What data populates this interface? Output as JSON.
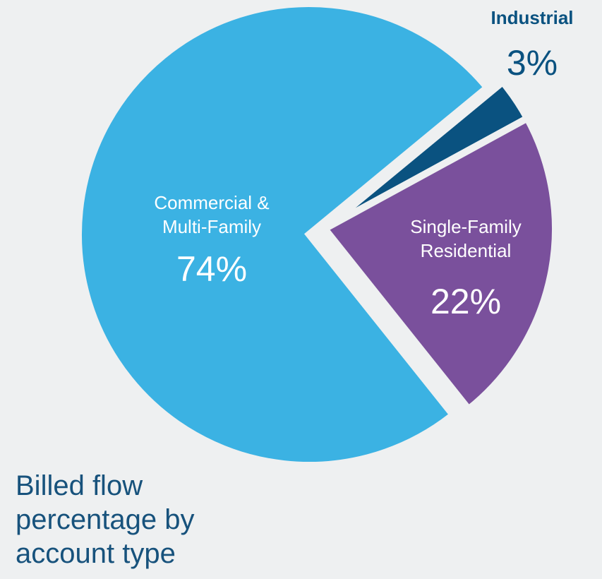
{
  "chart_data": {
    "type": "pie",
    "title": "Billed flow percentage by account type",
    "title_lines": [
      "Billed flow",
      "percentage by",
      "account type"
    ],
    "legend": "none",
    "slices": [
      {
        "name": "Commercial & Multi-Family",
        "label_lines": [
          "Commercial &",
          "Multi-Family"
        ],
        "value": 74,
        "value_label": "74%",
        "color": "#3bb2e3"
      },
      {
        "name": "Industrial",
        "label_lines": [
          "Industrial"
        ],
        "value": 3,
        "value_label": "3%",
        "color": "#0a5280"
      },
      {
        "name": "Single-Family Residential",
        "label_lines": [
          "Single-Family",
          "Residential"
        ],
        "value": 22,
        "value_label": "22%",
        "color": "#7a509c"
      }
    ]
  },
  "colors": {
    "background": "#eef0f1",
    "caption_text": "#17527c",
    "industrial_label": "#0a5280",
    "inner_label": "#ffffff"
  }
}
